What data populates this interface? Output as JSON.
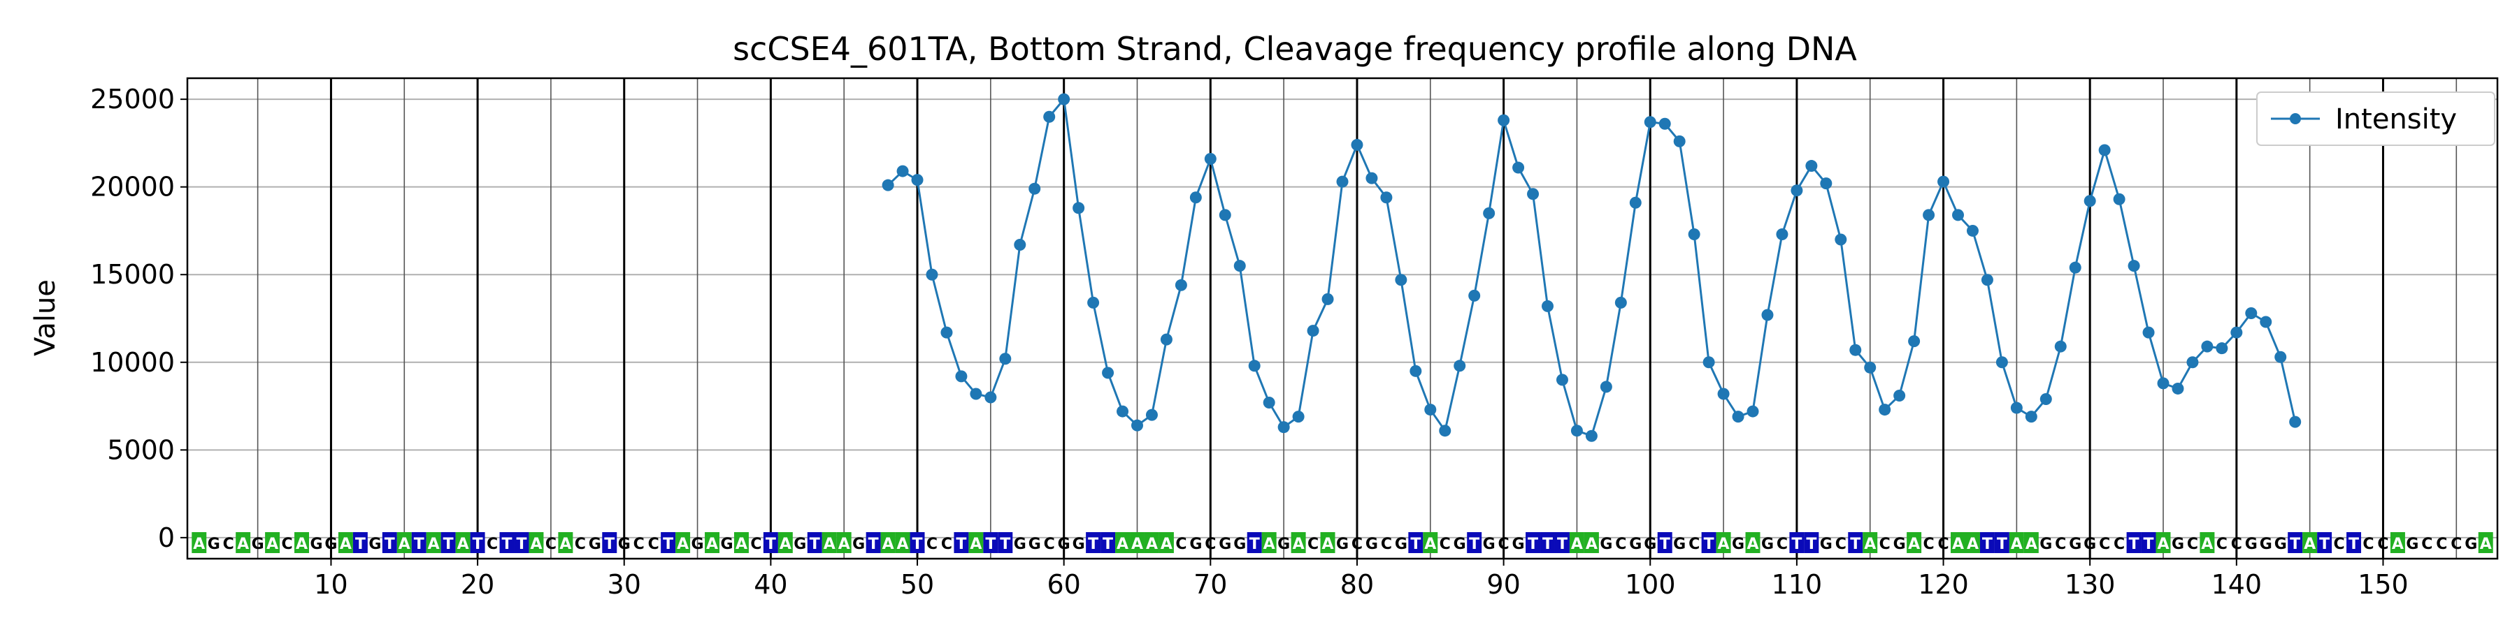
{
  "chart_data": {
    "type": "line",
    "title": "scCSE4_601TA, Bottom Strand, Cleavage frequency profile along DNA",
    "xlabel": "",
    "ylabel": "Value",
    "xlim": [
      0.2,
      157.8
    ],
    "ylim": [
      -1200,
      26200
    ],
    "x_ticks": [
      10,
      20,
      30,
      40,
      50,
      60,
      70,
      80,
      90,
      100,
      110,
      120,
      130,
      140,
      150
    ],
    "y_ticks": [
      0,
      5000,
      10000,
      15000,
      20000,
      25000
    ],
    "tick_labels_x": [
      "10",
      "20",
      "30",
      "40",
      "50",
      "60",
      "70",
      "80",
      "90",
      "100",
      "110",
      "120",
      "130",
      "140",
      "150"
    ],
    "tick_labels_y": [
      "0",
      "5000",
      "10000",
      "15000",
      "20000",
      "25000"
    ],
    "grid": true,
    "legend_position": "top-right",
    "series": [
      {
        "name": "Intensity",
        "color": "#1f77b4",
        "x": [
          48,
          49,
          50,
          51,
          52,
          53,
          54,
          55,
          56,
          57,
          58,
          59,
          60,
          61,
          62,
          63,
          64,
          65,
          66,
          67,
          68,
          69,
          70,
          71,
          72,
          73,
          74,
          75,
          76,
          77,
          78,
          79,
          80,
          81,
          82,
          83,
          84,
          85,
          86,
          87,
          88,
          89,
          90,
          91,
          92,
          93,
          94,
          95,
          96,
          97,
          98,
          99,
          100,
          101,
          102,
          103,
          104,
          105,
          106,
          107,
          108,
          109,
          110,
          111,
          112,
          113,
          114,
          115,
          116,
          117,
          118,
          119,
          120,
          121,
          122,
          123,
          124,
          125,
          126,
          127,
          128,
          129,
          130,
          131,
          132,
          133,
          134,
          135,
          136,
          137,
          138,
          139,
          140,
          141,
          142,
          143,
          144
        ],
        "y": [
          20100,
          20900,
          20400,
          15000,
          11700,
          9200,
          8200,
          8000,
          10200,
          16700,
          19900,
          24000,
          25000,
          18800,
          13400,
          9400,
          7200,
          6400,
          7000,
          11300,
          14400,
          19400,
          21600,
          18400,
          15500,
          9800,
          7700,
          6300,
          6900,
          11800,
          13600,
          20300,
          22400,
          20500,
          19400,
          14700,
          9500,
          7300,
          6100,
          9800,
          13800,
          18500,
          23800,
          21100,
          19600,
          13200,
          9000,
          6100,
          5800,
          8600,
          13400,
          19100,
          23700,
          23600,
          22600,
          17300,
          10000,
          8200,
          6900,
          7200,
          12700,
          17300,
          19800,
          21200,
          20200,
          17000,
          10700,
          9700,
          7300,
          8100,
          11200,
          18400,
          20300,
          18400,
          17500,
          14700,
          10000,
          7400,
          6900,
          7900,
          10900,
          15400,
          19200,
          22100,
          19300,
          15500,
          11700,
          8800,
          8500,
          10000,
          10900,
          10800,
          11700,
          12800,
          12300,
          10300,
          6600
        ]
      }
    ],
    "sequence": "AGCAGACAGGATGTATATATCTTACACGTGCCTAGAGACTAGTAAGTAATCCTATTGGCGGTTAAAACGCGGTAGACAGCGCGTACGTGCGTTTAAGCGGTGCTAGAGCTTGCTACGACCAATTAAGCGGCCTTAGCACCGGGTATCTCCAGCCCGA",
    "base_colors": {
      "A": "#22b022",
      "T": "#0a0ab8",
      "C": "#ffffff",
      "G": "#ffffff"
    },
    "base_text_colors": {
      "A": "#ffffff",
      "T": "#ffffff",
      "C": "#000000",
      "G": "#000000"
    }
  }
}
